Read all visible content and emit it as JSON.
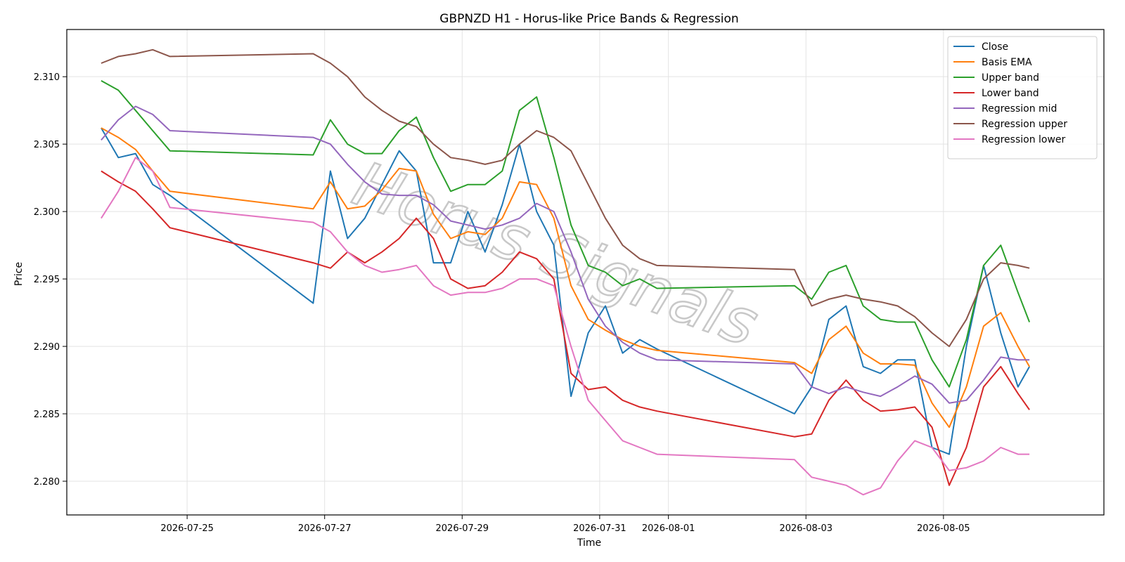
{
  "chart_data": {
    "type": "line",
    "title": "GBPNZD H1 - Horus-like Price Bands & Regression",
    "xlabel": "Time",
    "ylabel": "Price",
    "ylim": [
      2.2775,
      2.3135
    ],
    "xlim": [
      "2026-07-23T06:00",
      "2026-08-07T08:00"
    ],
    "grid": true,
    "legend_position": "top-right",
    "watermark": "Horus Signals",
    "x_ticks": [
      "2026-07-25",
      "2026-07-27",
      "2026-07-29",
      "2026-07-31",
      "2026-08-01",
      "2026-08-03",
      "2026-08-05"
    ],
    "y_ticks": [
      "2.280",
      "2.285",
      "2.290",
      "2.295",
      "2.300",
      "2.305",
      "2.310"
    ],
    "x": [
      "2026-07-23T18:00",
      "2026-07-24T00:00",
      "2026-07-24T06:00",
      "2026-07-24T12:00",
      "2026-07-24T18:00",
      "2026-07-26T20:00",
      "2026-07-27T02:00",
      "2026-07-27T08:00",
      "2026-07-27T14:00",
      "2026-07-27T20:00",
      "2026-07-28T02:00",
      "2026-07-28T08:00",
      "2026-07-28T14:00",
      "2026-07-28T20:00",
      "2026-07-29T02:00",
      "2026-07-29T08:00",
      "2026-07-29T14:00",
      "2026-07-29T20:00",
      "2026-07-30T02:00",
      "2026-07-30T08:00",
      "2026-07-30T14:00",
      "2026-07-30T20:00",
      "2026-07-31T02:00",
      "2026-07-31T08:00",
      "2026-07-31T14:00",
      "2026-07-31T20:00",
      "2026-08-02T20:00",
      "2026-08-03T02:00",
      "2026-08-03T08:00",
      "2026-08-03T14:00",
      "2026-08-03T20:00",
      "2026-08-04T02:00",
      "2026-08-04T08:00",
      "2026-08-04T14:00",
      "2026-08-04T20:00",
      "2026-08-05T02:00",
      "2026-08-05T08:00",
      "2026-08-05T14:00",
      "2026-08-05T20:00",
      "2026-08-06T02:00",
      "2026-08-06T06:00"
    ],
    "series": [
      {
        "name": "Close",
        "color": "#1f77b4",
        "values": [
          2.3062,
          2.304,
          2.3043,
          2.302,
          2.3012,
          2.2932,
          2.303,
          2.298,
          2.2995,
          2.302,
          2.3045,
          2.303,
          2.2962,
          2.2962,
          2.3,
          2.297,
          2.3005,
          2.305,
          2.3,
          2.2975,
          2.2863,
          2.291,
          2.293,
          2.2895,
          2.2905,
          2.2898,
          2.285,
          2.287,
          2.292,
          2.293,
          2.2885,
          2.288,
          2.289,
          2.289,
          2.2825,
          2.282,
          2.29,
          2.296,
          2.291,
          2.287,
          2.2885
        ]
      },
      {
        "name": "Basis EMA",
        "color": "#ff7f0e",
        "values": [
          2.3062,
          2.3055,
          2.3046,
          2.303,
          2.3015,
          2.3002,
          2.3022,
          2.3002,
          2.3004,
          2.3016,
          2.3032,
          2.303,
          2.2998,
          2.298,
          2.2985,
          2.2983,
          2.2995,
          2.3022,
          2.302,
          2.2995,
          2.2945,
          2.292,
          2.2912,
          2.2905,
          2.29,
          2.2897,
          2.2888,
          2.288,
          2.2905,
          2.2915,
          2.2895,
          2.2887,
          2.2887,
          2.2886,
          2.2858,
          2.284,
          2.287,
          2.2915,
          2.2925,
          2.29,
          2.2885
        ]
      },
      {
        "name": "Upper band",
        "color": "#2ca02c",
        "values": [
          2.3097,
          2.309,
          2.3075,
          2.306,
          2.3045,
          2.3042,
          2.3068,
          2.305,
          2.3043,
          2.3043,
          2.306,
          2.307,
          2.304,
          2.3015,
          2.302,
          2.302,
          2.303,
          2.3075,
          2.3085,
          2.304,
          2.299,
          2.296,
          2.2955,
          2.2945,
          2.295,
          2.2943,
          2.2945,
          2.2935,
          2.2955,
          2.296,
          2.293,
          2.292,
          2.2918,
          2.2918,
          2.289,
          2.287,
          2.2905,
          2.296,
          2.2975,
          2.294,
          2.2918
        ]
      },
      {
        "name": "Lower band",
        "color": "#d62728",
        "values": [
          2.303,
          2.3022,
          2.3015,
          2.3002,
          2.2988,
          2.2962,
          2.2958,
          2.297,
          2.2962,
          2.297,
          2.298,
          2.2995,
          2.298,
          2.295,
          2.2943,
          2.2945,
          2.2955,
          2.297,
          2.2965,
          2.295,
          2.288,
          2.2868,
          2.287,
          2.286,
          2.2855,
          2.2852,
          2.2833,
          2.2835,
          2.286,
          2.2875,
          2.286,
          2.2852,
          2.2853,
          2.2855,
          2.284,
          2.2797,
          2.2825,
          2.287,
          2.2885,
          2.2865,
          2.2853
        ]
      },
      {
        "name": "Regression mid",
        "color": "#9467bd",
        "values": [
          2.3053,
          2.3068,
          2.3078,
          2.3072,
          2.306,
          2.3055,
          2.305,
          2.3035,
          2.3022,
          2.3013,
          2.3012,
          2.3012,
          2.3005,
          2.2993,
          2.299,
          2.2987,
          2.299,
          2.2995,
          2.3006,
          2.3,
          2.297,
          2.2935,
          2.2915,
          2.2903,
          2.2895,
          2.289,
          2.2887,
          2.287,
          2.2865,
          2.287,
          2.2866,
          2.2863,
          2.287,
          2.2878,
          2.2872,
          2.2858,
          2.286,
          2.2875,
          2.2892,
          2.289,
          2.289
        ]
      },
      {
        "name": "Regression upper",
        "color": "#8c564b",
        "values": [
          2.311,
          2.3115,
          2.3117,
          2.312,
          2.3115,
          2.3117,
          2.311,
          2.31,
          2.3085,
          2.3075,
          2.3067,
          2.3063,
          2.305,
          2.304,
          2.3038,
          2.3035,
          2.3038,
          2.305,
          2.306,
          2.3055,
          2.3045,
          2.302,
          2.2995,
          2.2975,
          2.2965,
          2.296,
          2.2957,
          2.293,
          2.2935,
          2.2938,
          2.2935,
          2.2933,
          2.293,
          2.2922,
          2.291,
          2.29,
          2.292,
          2.295,
          2.2962,
          2.296,
          2.2958
        ]
      },
      {
        "name": "Regression lower",
        "color": "#e377c2",
        "values": [
          2.2995,
          2.3015,
          2.304,
          2.303,
          2.3003,
          2.2992,
          2.2985,
          2.297,
          2.296,
          2.2955,
          2.2957,
          2.296,
          2.2945,
          2.2938,
          2.294,
          2.294,
          2.2943,
          2.295,
          2.295,
          2.2945,
          2.29,
          2.286,
          2.2845,
          2.283,
          2.2825,
          2.282,
          2.2816,
          2.2803,
          2.28,
          2.2797,
          2.279,
          2.2795,
          2.2815,
          2.283,
          2.2825,
          2.2808,
          2.281,
          2.2815,
          2.2825,
          2.282,
          2.282
        ]
      }
    ]
  }
}
